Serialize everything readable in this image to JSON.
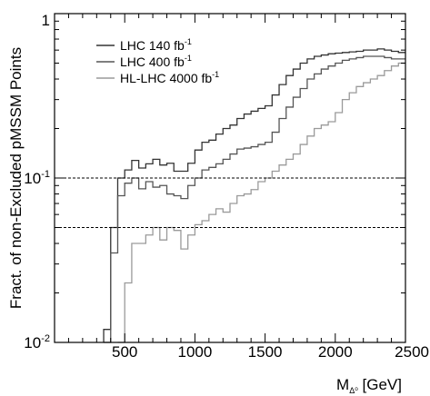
{
  "chart_data": {
    "type": "line",
    "step": true,
    "title": "",
    "xlabel": {
      "main": "M",
      "sub": "Δ⁰",
      "unit": " [GeV]"
    },
    "ylabel": "Fract. of non-Excluded pMSSM Points",
    "xlim": [
      0,
      2500
    ],
    "ylim": [
      0.01,
      1
    ],
    "yscale": "log",
    "grid": false,
    "legend": "top-left",
    "x_ticks": [
      {
        "value": 500,
        "label": "500"
      },
      {
        "value": 1000,
        "label": "1000"
      },
      {
        "value": 1500,
        "label": "1500"
      },
      {
        "value": 2000,
        "label": "2000"
      },
      {
        "value": 2500,
        "label": "2500"
      }
    ],
    "y_ticks": [
      {
        "value": 0.01,
        "base": "10",
        "exp": "-2"
      },
      {
        "value": 0.1,
        "base": "10",
        "exp": "-1"
      },
      {
        "value": 1,
        "base": "1",
        "exp": ""
      }
    ],
    "reference_lines": [
      0.1,
      0.05
    ],
    "series": [
      {
        "name": "LHC 140 fb",
        "name_sup": "-1",
        "color": "#333333",
        "x": [
          350,
          400,
          450,
          500,
          550,
          600,
          650,
          700,
          750,
          800,
          850,
          900,
          950,
          1000,
          1050,
          1100,
          1150,
          1200,
          1250,
          1300,
          1350,
          1400,
          1450,
          1500,
          1550,
          1600,
          1650,
          1700,
          1750,
          1800,
          1850,
          1900,
          1950,
          2000,
          2050,
          2100,
          2150,
          2200,
          2250,
          2300,
          2350,
          2400,
          2450,
          2500
        ],
        "y": [
          0.012,
          0.05,
          0.1,
          0.112,
          0.128,
          0.115,
          0.122,
          0.13,
          0.12,
          0.123,
          0.11,
          0.11,
          0.123,
          0.148,
          0.165,
          0.17,
          0.185,
          0.2,
          0.21,
          0.23,
          0.245,
          0.255,
          0.265,
          0.275,
          0.32,
          0.37,
          0.42,
          0.46,
          0.5,
          0.53,
          0.55,
          0.56,
          0.57,
          0.575,
          0.58,
          0.585,
          0.59,
          0.6,
          0.6,
          0.61,
          0.6,
          0.59,
          0.58,
          0.58
        ]
      },
      {
        "name": "LHC 400 fb",
        "name_sup": "-1",
        "color": "#555555",
        "x": [
          350,
          400,
          450,
          500,
          550,
          600,
          650,
          700,
          750,
          800,
          850,
          900,
          950,
          1000,
          1050,
          1100,
          1150,
          1200,
          1250,
          1300,
          1350,
          1400,
          1450,
          1500,
          1550,
          1600,
          1650,
          1700,
          1750,
          1800,
          1850,
          1900,
          1950,
          2000,
          2050,
          2100,
          2150,
          2200,
          2250,
          2300,
          2350,
          2400,
          2450,
          2500
        ],
        "y": [
          0.01,
          0.035,
          0.078,
          0.093,
          0.1,
          0.086,
          0.095,
          0.088,
          0.09,
          0.08,
          0.078,
          0.075,
          0.09,
          0.1,
          0.112,
          0.116,
          0.122,
          0.13,
          0.14,
          0.15,
          0.152,
          0.155,
          0.16,
          0.165,
          0.19,
          0.23,
          0.27,
          0.31,
          0.35,
          0.4,
          0.43,
          0.46,
          0.48,
          0.5,
          0.52,
          0.53,
          0.54,
          0.55,
          0.55,
          0.55,
          0.54,
          0.53,
          0.53,
          0.53
        ]
      },
      {
        "name": "HL-LHC 4000 fb",
        "name_sup": "-1",
        "color": "#9a9a9a",
        "x": [
          450,
          500,
          550,
          600,
          650,
          700,
          750,
          800,
          850,
          900,
          950,
          1000,
          1050,
          1100,
          1150,
          1200,
          1250,
          1300,
          1350,
          1400,
          1450,
          1500,
          1550,
          1600,
          1650,
          1700,
          1750,
          1800,
          1850,
          1900,
          1950,
          2000,
          2050,
          2100,
          2150,
          2200,
          2250,
          2300,
          2350,
          2400,
          2450,
          2500
        ],
        "y": [
          0.01,
          0.023,
          0.04,
          0.04,
          0.045,
          0.05,
          0.042,
          0.05,
          0.048,
          0.037,
          0.045,
          0.052,
          0.055,
          0.06,
          0.065,
          0.062,
          0.07,
          0.078,
          0.08,
          0.085,
          0.095,
          0.1,
          0.11,
          0.12,
          0.13,
          0.14,
          0.16,
          0.18,
          0.2,
          0.21,
          0.22,
          0.25,
          0.3,
          0.33,
          0.36,
          0.38,
          0.4,
          0.42,
          0.45,
          0.48,
          0.5,
          0.5
        ]
      }
    ]
  }
}
